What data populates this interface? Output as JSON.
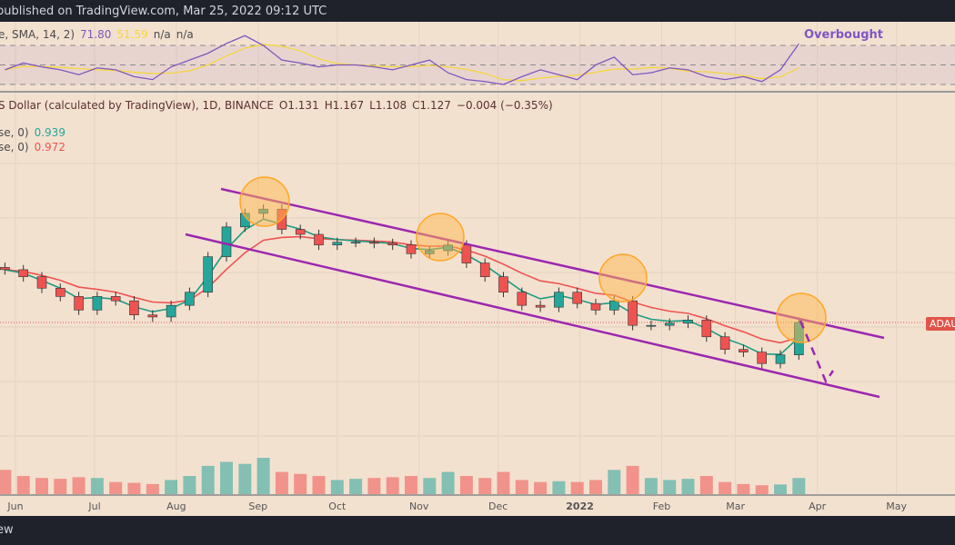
{
  "header": {
    "published": "published on TradingView.com, Mar 25, 2022 09:12 UTC"
  },
  "footer": {
    "brand": "ew"
  },
  "rsi_legend": {
    "params": "e, SMA, 14, 2)",
    "rsi": "71.80",
    "rsi_ma": "51.59",
    "na1": "n/a",
    "na2": "n/a"
  },
  "annotation": {
    "overbought": "Overbought"
  },
  "price_legend": {
    "symbol": "S Dollar (calculated by TradingView), 1D, BINANCE",
    "open": "O1.131",
    "high": "H1.167",
    "low": "L1.108",
    "close": "C1.127",
    "change": "−0.004 (−0.35%)"
  },
  "ma_legend": [
    {
      "params": "se, 0)",
      "value": "0.939",
      "color": "#26a69a"
    },
    {
      "params": "se, 0)",
      "value": "0.972",
      "color": "#ef5350"
    }
  ],
  "price_tag": "ADAUS",
  "colors": {
    "up": "#26a69a",
    "down": "#ef5350",
    "rsi": "#7e57c2",
    "rsi_ma": "#f5d63d",
    "channel": "#9c27b0",
    "circle": "#ffb74d",
    "background": "#f3e1d0"
  },
  "chart_data": {
    "type": "candlestick",
    "scale": "log",
    "x_ticks": [
      "Jun",
      "Jul",
      "Aug",
      "Sep",
      "Oct",
      "Nov",
      "Dec",
      "2022",
      "Feb",
      "Mar",
      "Apr",
      "May"
    ],
    "dates": [
      "2021-05-28",
      "2021-06-04",
      "2021-06-11",
      "2021-06-18",
      "2021-06-25",
      "2021-07-02",
      "2021-07-09",
      "2021-07-16",
      "2021-07-23",
      "2021-07-30",
      "2021-08-06",
      "2021-08-13",
      "2021-08-20",
      "2021-08-27",
      "2021-09-03",
      "2021-09-10",
      "2021-09-17",
      "2021-09-24",
      "2021-10-01",
      "2021-10-08",
      "2021-10-15",
      "2021-10-22",
      "2021-10-29",
      "2021-11-05",
      "2021-11-12",
      "2021-11-19",
      "2021-11-26",
      "2021-12-03",
      "2021-12-10",
      "2021-12-17",
      "2021-12-24",
      "2021-12-31",
      "2022-01-07",
      "2022-01-14",
      "2022-01-21",
      "2022-01-28",
      "2022-02-04",
      "2022-02-11",
      "2022-02-18",
      "2022-02-25",
      "2022-03-04",
      "2022-03-11",
      "2022-03-18",
      "2022-03-25"
    ],
    "close": [
      1.75,
      1.65,
      1.5,
      1.4,
      1.25,
      1.4,
      1.35,
      1.2,
      1.18,
      1.3,
      1.45,
      1.95,
      2.5,
      2.8,
      2.9,
      2.45,
      2.35,
      2.15,
      2.2,
      2.2,
      2.18,
      2.15,
      2.0,
      2.05,
      2.15,
      1.85,
      1.65,
      1.45,
      1.3,
      1.28,
      1.45,
      1.32,
      1.25,
      1.35,
      1.1,
      1.1,
      1.12,
      1.15,
      1.0,
      0.9,
      0.88,
      0.8,
      0.86,
      1.127
    ],
    "volume": [
      60,
      45,
      40,
      38,
      42,
      40,
      30,
      28,
      25,
      35,
      45,
      70,
      80,
      75,
      90,
      55,
      50,
      45,
      35,
      38,
      40,
      42,
      45,
      40,
      55,
      45,
      40,
      55,
      35,
      30,
      32,
      30,
      35,
      60,
      70,
      40,
      35,
      38,
      45,
      30,
      25,
      22,
      24,
      40
    ],
    "rsi": [
      45,
      52,
      48,
      45,
      40,
      47,
      45,
      38,
      35,
      48,
      55,
      62,
      72,
      80,
      70,
      55,
      52,
      48,
      50,
      50,
      48,
      45,
      50,
      55,
      42,
      35,
      33,
      30,
      38,
      45,
      40,
      35,
      50,
      58,
      40,
      42,
      47,
      45,
      38,
      35,
      38,
      33,
      45,
      71.8
    ],
    "rsi_levels": [
      70,
      50,
      30
    ]
  }
}
